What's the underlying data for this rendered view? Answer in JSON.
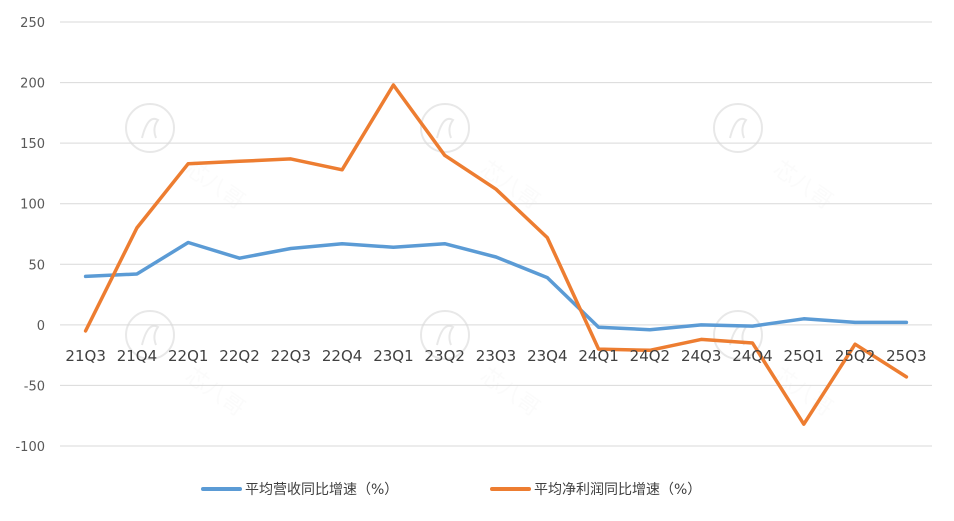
{
  "chart_data": {
    "type": "line",
    "title": "",
    "xlabel": "",
    "ylabel": "",
    "ylim": [
      -100,
      250
    ],
    "yticks": [
      "250",
      "200",
      "150",
      "100",
      "50",
      "0",
      "-50",
      "-100"
    ],
    "categories": [
      "21Q3",
      "21Q4",
      "22Q1",
      "22Q2",
      "22Q3",
      "22Q4",
      "23Q1",
      "23Q2",
      "23Q3",
      "23Q4",
      "24Q1",
      "24Q2",
      "24Q3",
      "24Q4",
      "25Q1",
      "25Q2",
      "25Q3"
    ],
    "series": [
      {
        "name": "平均营收同比增速（%）",
        "color": "#5B9BD5",
        "values": [
          40,
          42,
          68,
          55,
          63,
          67,
          64,
          67,
          56,
          39,
          -2,
          -4,
          0,
          -1,
          5,
          2,
          2
        ]
      },
      {
        "name": "平均净利润同比增速（%）",
        "color": "#ED7D31",
        "values": [
          -5,
          80,
          133,
          135,
          137,
          128,
          198,
          140,
          112,
          72,
          -20,
          -21,
          -12,
          -15,
          -82,
          -16,
          -43
        ]
      }
    ],
    "grid": true,
    "legend_position": "bottom"
  },
  "watermark": {
    "text": "芯八哥",
    "icon": "seahorse-logo-icon"
  }
}
